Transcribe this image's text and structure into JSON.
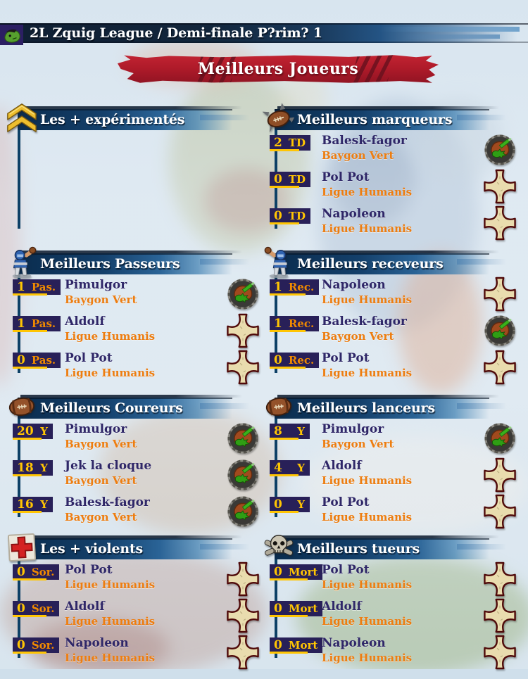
{
  "window": {
    "title": "2L Zquig League / Demi-finale P?rim? 1"
  },
  "banner": {
    "title": "Meilleurs Joueurs"
  },
  "colors": {
    "accent_yellow": "#ffc503",
    "accent_orange_unit": "#f08a00",
    "badge_background": "#282058",
    "player_name": "#2f2768",
    "team_name": "#ed7d10",
    "header_bar_blue": "#14406b",
    "ribbon_red": "#b01b2a",
    "connector_line": "#0d4066"
  },
  "panels": [
    {
      "id": "experimented",
      "title": "Les + expérimentés",
      "icon": "rank-chevrons-icon",
      "entries": []
    },
    {
      "id": "scorers",
      "title": "Meilleurs marqueurs",
      "icon": "spiked-ball-icon",
      "entries": [
        {
          "value": "2",
          "unit": "TD",
          "player": "Balesk-fagor",
          "team": "Baygon Vert",
          "logo": "baygon-vert"
        },
        {
          "value": "0",
          "unit": "TD",
          "player": "Pol Pot",
          "team": "Ligue Humanis",
          "logo": "ligue-humanis"
        },
        {
          "value": "0",
          "unit": "TD",
          "player": "Napoleon",
          "team": "Ligue Humanis",
          "logo": "ligue-humanis"
        }
      ]
    },
    {
      "id": "passers",
      "title": "Meilleurs Passeurs",
      "icon": "thrower-icon",
      "entries": [
        {
          "value": "1",
          "unit": "Pas.",
          "player": "Pimulgor",
          "team": "Baygon Vert",
          "logo": "baygon-vert"
        },
        {
          "value": "1",
          "unit": "Pas.",
          "player": "Aldolf",
          "team": "Ligue Humanis",
          "logo": "ligue-humanis"
        },
        {
          "value": "0",
          "unit": "Pas.",
          "player": "Pol Pot",
          "team": "Ligue Humanis",
          "logo": "ligue-humanis"
        }
      ]
    },
    {
      "id": "receivers",
      "title": "Meilleurs receveurs",
      "icon": "catcher-icon",
      "entries": [
        {
          "value": "1",
          "unit": "Rec.",
          "player": "Napoleon",
          "team": "Ligue Humanis",
          "logo": "ligue-humanis"
        },
        {
          "value": "1",
          "unit": "Rec.",
          "player": "Balesk-fagor",
          "team": "Baygon Vert",
          "logo": "baygon-vert"
        },
        {
          "value": "0",
          "unit": "Rec.",
          "player": "Pol Pot",
          "team": "Ligue Humanis",
          "logo": "ligue-humanis"
        }
      ]
    },
    {
      "id": "runners",
      "title": "Meilleurs Coureurs",
      "icon": "football-icon",
      "entries": [
        {
          "value": "20",
          "unit": "Y",
          "player": "Pimulgor",
          "team": "Baygon Vert",
          "logo": "baygon-vert"
        },
        {
          "value": "18",
          "unit": "Y",
          "player": "Jek la cloque",
          "team": "Baygon Vert",
          "logo": "baygon-vert"
        },
        {
          "value": "16",
          "unit": "Y",
          "player": "Balesk-fagor",
          "team": "Baygon Vert",
          "logo": "baygon-vert"
        }
      ]
    },
    {
      "id": "throwers",
      "title": "Meilleurs lanceurs",
      "icon": "football-icon",
      "entries": [
        {
          "value": "8",
          "unit": "Y",
          "player": "Pimulgor",
          "team": "Baygon Vert",
          "logo": "baygon-vert"
        },
        {
          "value": "4",
          "unit": "Y",
          "player": "Aldolf",
          "team": "Ligue Humanis",
          "logo": "ligue-humanis"
        },
        {
          "value": "0",
          "unit": "Y",
          "player": "Pol Pot",
          "team": "Ligue Humanis",
          "logo": "ligue-humanis"
        }
      ]
    },
    {
      "id": "violent",
      "title": "Les + violents",
      "icon": "first-aid-icon",
      "entries": [
        {
          "value": "0",
          "unit": "Sor.",
          "player": "Pol Pot",
          "team": "Ligue Humanis",
          "logo": "ligue-humanis"
        },
        {
          "value": "0",
          "unit": "Sor.",
          "player": "Aldolf",
          "team": "Ligue Humanis",
          "logo": "ligue-humanis"
        },
        {
          "value": "0",
          "unit": "Sor.",
          "player": "Napoleon",
          "team": "Ligue Humanis",
          "logo": "ligue-humanis"
        }
      ]
    },
    {
      "id": "killers",
      "title": "Meilleurs tueurs",
      "icon": "skull-icon",
      "entries": [
        {
          "value": "0",
          "unit": "Mort",
          "player": "Pol Pot",
          "team": "Ligue Humanis",
          "logo": "ligue-humanis"
        },
        {
          "value": "0",
          "unit": "Mort",
          "player": "Aldolf",
          "team": "Ligue Humanis",
          "logo": "ligue-humanis"
        },
        {
          "value": "0",
          "unit": "Mort",
          "player": "Napoleon",
          "team": "Ligue Humanis",
          "logo": "ligue-humanis"
        }
      ]
    }
  ]
}
